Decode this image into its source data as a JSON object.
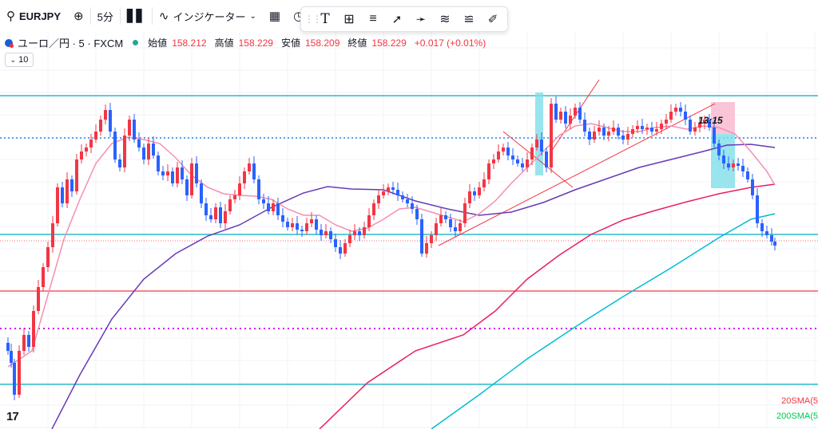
{
  "toolbar": {
    "symbol": "EURJPY",
    "interval": "5分",
    "indicators": "インジケーター"
  },
  "legend": {
    "title": "ユーロ／円 · 5 · FXCM",
    "open_label": "始値",
    "open": "158.212",
    "high_label": "高値",
    "high": "158.229",
    "low_label": "安値",
    "low": "158.209",
    "close_label": "終値",
    "close": "158.229",
    "change": "+0.017 (+0.01%)",
    "collapse_count": "10"
  },
  "time_label": "13:15",
  "sma_labels": {
    "sma20": "20SMA(5",
    "sma200": "200SMA(5"
  },
  "colors": {
    "up": "#26a69a",
    "down": "#f23645",
    "wick_up": "#2962ff",
    "sma20": "#f48fb1",
    "sma_purple": "#673ab7",
    "sma_red": "#e91e63",
    "sma_cyan": "#00bcd4",
    "hline": "#00acc1"
  },
  "icons": [
    "search-icon",
    "plus-circle-icon",
    "candles-icon",
    "indicators-icon",
    "layout-grid-icon",
    "alert-icon",
    "text-icon",
    "crosshair-box-icon",
    "horizontal-lines-icon",
    "trend-line-icon",
    "ray-icon",
    "parallel-channel-icon",
    "fib-icon",
    "brush-icon"
  ]
}
